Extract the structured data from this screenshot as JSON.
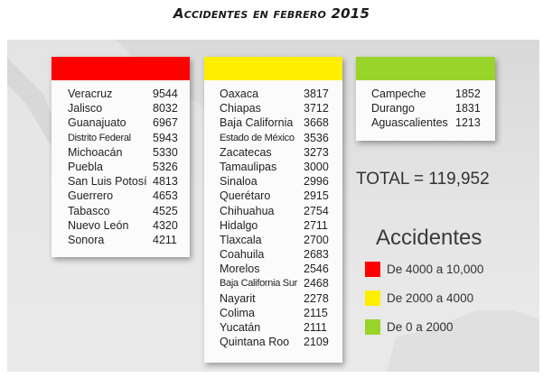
{
  "chart_data": {
    "type": "table",
    "title": "Accidentes en febrero 2015",
    "groups": [
      {
        "color": "#ff0000",
        "items": [
          {
            "state": "Veracruz",
            "value": 9544
          },
          {
            "state": "Jalisco",
            "value": 8032
          },
          {
            "state": "Guanajuato",
            "value": 6967
          },
          {
            "state": "Distrito Federal",
            "value": 5943
          },
          {
            "state": "Michoacán",
            "value": 5330
          },
          {
            "state": "Puebla",
            "value": 5326
          },
          {
            "state": "San Luis Potosí",
            "value": 4813
          },
          {
            "state": "Guerrero",
            "value": 4653
          },
          {
            "state": "Tabasco",
            "value": 4525
          },
          {
            "state": "Nuevo León",
            "value": 4320
          },
          {
            "state": "Sonora",
            "value": 4211
          }
        ]
      },
      {
        "color": "#ffee00",
        "items": [
          {
            "state": "Oaxaca",
            "value": 3817
          },
          {
            "state": "Chiapas",
            "value": 3712
          },
          {
            "state": "Baja California",
            "value": 3668
          },
          {
            "state": "Estado de México",
            "value": 3536
          },
          {
            "state": "Zacatecas",
            "value": 3273
          },
          {
            "state": "Tamaulipas",
            "value": 3000
          },
          {
            "state": "Sinaloa",
            "value": 2996
          },
          {
            "state": "Querétaro",
            "value": 2915
          },
          {
            "state": "Chihuahua",
            "value": 2754
          },
          {
            "state": "Hidalgo",
            "value": 2711
          },
          {
            "state": "Tlaxcala",
            "value": 2700
          },
          {
            "state": "Coahuila",
            "value": 2683
          },
          {
            "state": "Morelos",
            "value": 2546
          },
          {
            "state": "Baja California Sur",
            "value": 2468
          },
          {
            "state": "Nayarit",
            "value": 2278
          },
          {
            "state": "Colima",
            "value": 2115
          },
          {
            "state": "Yucatán",
            "value": 2111
          },
          {
            "state": "Quintana Roo",
            "value": 2109
          }
        ]
      },
      {
        "color": "#99d42a",
        "items": [
          {
            "state": "Campeche",
            "value": 1852
          },
          {
            "state": "Durango",
            "value": 1831
          },
          {
            "state": "Aguascalientes",
            "value": 1213
          }
        ]
      }
    ],
    "total_label": "TOTAL = 119,952",
    "legend": {
      "title": "Accidentes",
      "entries": [
        {
          "label": "De 4000 a 10,000",
          "color": "#ff0000"
        },
        {
          "label": "De 2000 a 4000",
          "color": "#ffee00"
        },
        {
          "label": "De 0 a 2000",
          "color": "#99d42a"
        }
      ]
    }
  }
}
